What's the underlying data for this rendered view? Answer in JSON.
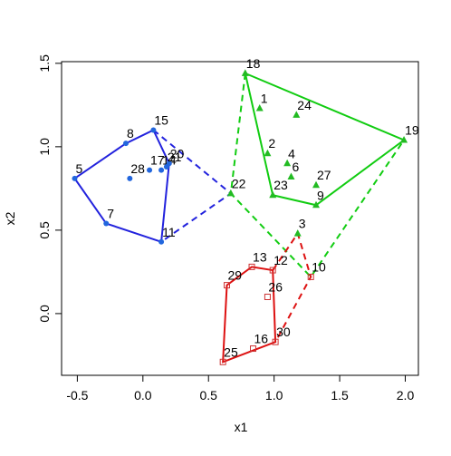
{
  "chart_data": {
    "type": "scatter",
    "x_label": "x1",
    "y_label": "x2",
    "xlim": [
      -0.62,
      2.1
    ],
    "ylim": [
      -0.37,
      1.51
    ],
    "xticks": [
      -0.5,
      {
        "value": 0,
        "label": "0.0"
      },
      0.5,
      {
        "value": 1,
        "label": "1.0"
      },
      1.5,
      {
        "value": 2,
        "label": "2.0"
      }
    ],
    "yticks": [
      {
        "value": 0,
        "label": "0.0"
      },
      0.5,
      {
        "value": 1,
        "label": "1.0"
      },
      1.5
    ],
    "points": [
      {
        "label": "1",
        "x": 0.89,
        "y": 1.23,
        "shape": "triangle",
        "color": "#22bb22"
      },
      {
        "label": "2",
        "x": 0.95,
        "y": 0.96,
        "shape": "triangle",
        "color": "#22bb22"
      },
      {
        "label": "3",
        "x": 1.18,
        "y": 0.48,
        "shape": "triangle",
        "color": "#22bb22"
      },
      {
        "label": "4",
        "x": 1.1,
        "y": 0.9,
        "shape": "triangle",
        "color": "#22bb22"
      },
      {
        "label": "5",
        "x": -0.52,
        "y": 0.81,
        "shape": "circle",
        "color": "#2266dd"
      },
      {
        "label": "6",
        "x": 1.13,
        "y": 0.82,
        "shape": "triangle",
        "color": "#22bb22"
      },
      {
        "label": "7",
        "x": -0.28,
        "y": 0.54,
        "shape": "circle",
        "color": "#2266dd"
      },
      {
        "label": "8",
        "x": -0.13,
        "y": 1.02,
        "shape": "circle",
        "color": "#2266dd"
      },
      {
        "label": "9",
        "x": 1.32,
        "y": 0.65,
        "shape": "triangle",
        "color": "#22bb22"
      },
      {
        "label": "10",
        "x": 1.28,
        "y": 0.22,
        "shape": "square",
        "color": "#cc3333"
      },
      {
        "label": "11",
        "x": 0.14,
        "y": 0.43,
        "shape": "circle",
        "color": "#2266dd"
      },
      {
        "label": "12",
        "x": 0.99,
        "y": 0.26,
        "shape": "square",
        "color": "#cc3333"
      },
      {
        "label": "13",
        "x": 0.83,
        "y": 0.28,
        "shape": "square",
        "color": "#cc3333"
      },
      {
        "label": "14",
        "x": 0.14,
        "y": 0.86,
        "shape": "circle",
        "color": "#2266dd"
      },
      {
        "label": "15",
        "x": 0.08,
        "y": 1.1,
        "shape": "circle",
        "color": "#2266dd"
      },
      {
        "label": "16",
        "x": 0.84,
        "y": -0.21,
        "shape": "square",
        "color": "#cc3333"
      },
      {
        "label": "17",
        "x": 0.05,
        "y": 0.86,
        "shape": "circle",
        "color": "#2266dd"
      },
      {
        "label": "18",
        "x": 0.78,
        "y": 1.44,
        "shape": "triangle",
        "color": "#22bb22"
      },
      {
        "label": "19",
        "x": 1.99,
        "y": 1.04,
        "shape": "triangle",
        "color": "#22bb22"
      },
      {
        "label": "20",
        "x": 0.2,
        "y": 0.9,
        "shape": "circle",
        "color": "#2266dd"
      },
      {
        "label": "21",
        "x": 0.18,
        "y": 0.88,
        "shape": "circle",
        "color": "#2266dd"
      },
      {
        "label": "22",
        "x": 0.67,
        "y": 0.72,
        "shape": "triangle",
        "color": "#22bb22"
      },
      {
        "label": "23",
        "x": 0.99,
        "y": 0.71,
        "shape": "triangle",
        "color": "#22bb22"
      },
      {
        "label": "24",
        "x": 1.17,
        "y": 1.19,
        "shape": "triangle",
        "color": "#22bb22"
      },
      {
        "label": "25",
        "x": 0.61,
        "y": -0.29,
        "shape": "square",
        "color": "#cc3333"
      },
      {
        "label": "26",
        "x": 0.95,
        "y": 0.1,
        "shape": "square",
        "color": "#cc3333"
      },
      {
        "label": "27",
        "x": 1.32,
        "y": 0.77,
        "shape": "triangle",
        "color": "#22bb22"
      },
      {
        "label": "28",
        "x": -0.1,
        "y": 0.81,
        "shape": "circle",
        "color": "#2266dd"
      },
      {
        "label": "29",
        "x": 0.64,
        "y": 0.17,
        "shape": "square",
        "color": "#cc3333"
      },
      {
        "label": "30",
        "x": 1.01,
        "y": -0.17,
        "shape": "square",
        "color": "#cc3333"
      }
    ],
    "hulls": [
      {
        "color": "#2222dd",
        "dashed": false,
        "closed": true,
        "vertices": [
          "5",
          "8",
          "15",
          "20",
          "11",
          "7"
        ]
      },
      {
        "color": "#2222dd",
        "dashed": true,
        "closed": false,
        "vertices": [
          "15",
          "22",
          "11"
        ]
      },
      {
        "color": "#11cc11",
        "dashed": false,
        "closed": true,
        "vertices": [
          "18",
          "19",
          "9",
          "23"
        ]
      },
      {
        "color": "#11cc11",
        "dashed": true,
        "closed": false,
        "vertices": [
          "18",
          "22",
          "10",
          "19"
        ]
      },
      {
        "color": "#dd1111",
        "dashed": false,
        "closed": true,
        "vertices": [
          "25",
          "29",
          "13",
          "12",
          "30"
        ]
      },
      {
        "color": "#dd1111",
        "dashed": true,
        "closed": false,
        "vertices": [
          "12",
          "3",
          "10",
          "30"
        ]
      }
    ]
  }
}
